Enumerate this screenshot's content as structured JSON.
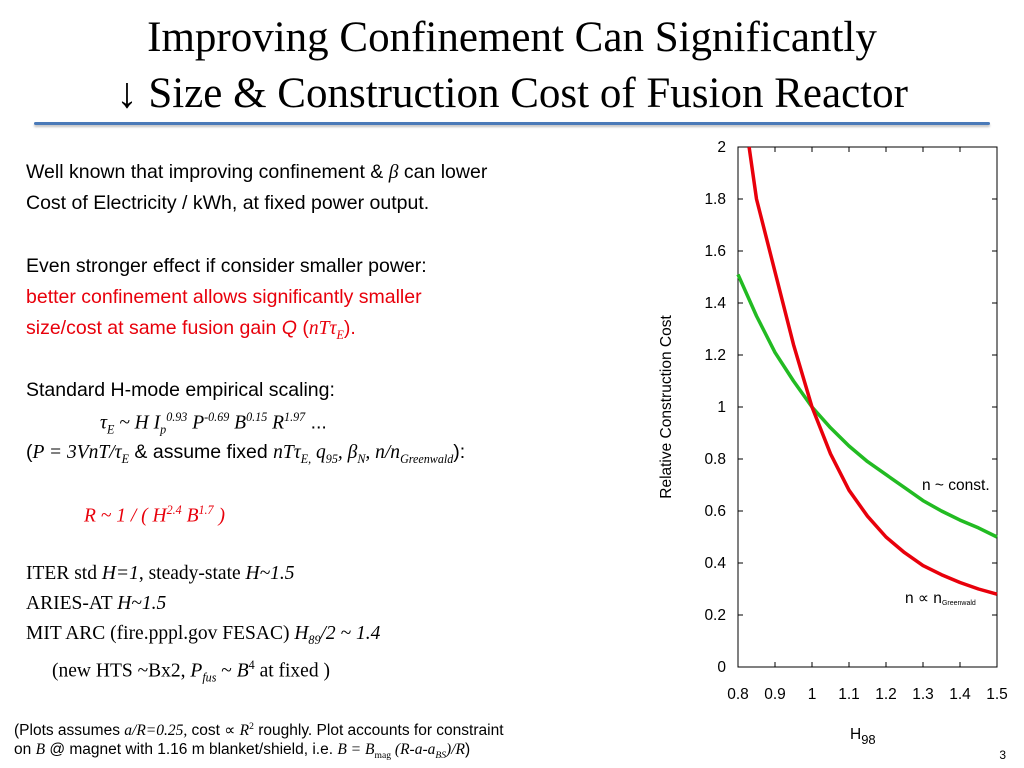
{
  "title": {
    "line1": "Improving Confinement Can Significantly",
    "line2": "↓ Size & Construction Cost of Fusion Reactor"
  },
  "text": {
    "p1_a": "Well known that improving confinement & ",
    "p1_beta": "β",
    "p1_b": " can lower",
    "p1_c": "Cost of Electricity / kWh, at fixed power output.",
    "p2_a": "Even stronger effect if consider smaller power:",
    "p2_b": "better confinement allows significantly smaller",
    "p2_c": "size/cost at same fusion gain ",
    "p2_Q": "Q",
    "p2_d": " (",
    "p2_ntau": "nTτ",
    "p2_E": "E",
    "p2_e": ").",
    "p3_a": "Standard H-mode empirical scaling:",
    "p3_formula": {
      "tau": "τ",
      "tau_sub": "E",
      "mid": " ~ H I",
      "p_sub": "p",
      "p_exp": "0.93",
      "P": " P",
      "P_exp": "-0.69",
      "B": " B",
      "B_exp": "0.15",
      "R": " R",
      "R_exp": "1.97",
      "tail": " ..."
    },
    "p3_assume": {
      "open": "(",
      "eq": "P = 3VnT/τ",
      "eq_sub": "E",
      "mid": " & assume fixed ",
      "vars": "nTτ",
      "vars_sub": "E,",
      "q": " q",
      "q_sub": "95",
      "beta": ", β",
      "beta_sub": "N",
      "nn": ", n/n",
      "nn_sub": "Greenwald",
      "close": "):"
    },
    "p3_R": {
      "a": "R ~ 1 / ( H",
      "h_exp": "2.4",
      "b": " B",
      "b_exp": "1.7",
      "c": " )"
    },
    "p4_a1": "ITER std ",
    "p4_a2": "H=1",
    "p4_a3": ", steady-state ",
    "p4_a4": "H~1.5",
    "p4_b1": "ARIES-AT  ",
    "p4_b2": "H~1.5",
    "p4_c1": "MIT ARC (fire.pppl.gov FESAC) ",
    "p4_c2": "H",
    "p4_c2sub": "89",
    "p4_c3": "/2 ~ 1.4",
    "p4_d1": "(new HTS ~Bx2, ",
    "p4_d2": "P",
    "p4_d2sub": "fus",
    "p4_d3": " ~ ",
    "p4_d4": "B",
    "p4_d4sup": "4",
    "p4_d5": " at fixed )"
  },
  "footnote": {
    "l1_a": "(Plots assumes ",
    "l1_b": "a/R=0.25,",
    "l1_c": " cost ∝ ",
    "l1_d": "R",
    "l1_dsup": "2",
    "l1_e": " roughly.  Plot accounts for constraint",
    "l2_a": "on ",
    "l2_b": "B",
    "l2_c": " @ magnet with 1.16 m blanket/shield, i.e. ",
    "l2_d": "B = B",
    "l2_dsub": "mag",
    "l2_e": " (R-a-a",
    "l2_esub": "BS",
    "l2_f": ")/R",
    "l2_g": ")"
  },
  "page_number": "3",
  "colors": {
    "red": "#e8000b",
    "green": "#22bb22",
    "rule": "#4a7ab8"
  },
  "chart_data": {
    "type": "line",
    "xlabel": "H",
    "xlabel_sub": "98",
    "ylabel": "Relative Construction Cost",
    "xlim": [
      0.8,
      1.5
    ],
    "ylim": [
      0,
      2
    ],
    "xticks": [
      0.8,
      0.9,
      1,
      1.1,
      1.2,
      1.3,
      1.4,
      1.5
    ],
    "xtick_labels": [
      "0.8",
      "0.9",
      "1",
      "1.1",
      "1.2",
      "1.3",
      "1.4",
      "1.5"
    ],
    "yticks": [
      0,
      0.2,
      0.4,
      0.6,
      0.8,
      1,
      1.2,
      1.4,
      1.6,
      1.8,
      2
    ],
    "ytick_labels": [
      "0",
      "0.2",
      "0.4",
      "0.6",
      "0.8",
      "1",
      "1.2",
      "1.4",
      "1.6",
      "1.8",
      "2"
    ],
    "series": [
      {
        "name": "n ~ const.",
        "color": "#22bb22",
        "x": [
          0.8,
          0.85,
          0.9,
          0.95,
          1.0,
          1.05,
          1.1,
          1.15,
          1.2,
          1.25,
          1.3,
          1.35,
          1.4,
          1.45,
          1.5
        ],
        "y": [
          1.51,
          1.35,
          1.21,
          1.1,
          1.0,
          0.92,
          0.85,
          0.79,
          0.74,
          0.69,
          0.64,
          0.6,
          0.565,
          0.535,
          0.5
        ]
      },
      {
        "name": "n ∝ n",
        "name_sub": "Greenwald",
        "color": "#e8000b",
        "x": [
          0.83,
          0.85,
          0.9,
          0.95,
          1.0,
          1.05,
          1.1,
          1.15,
          1.2,
          1.25,
          1.3,
          1.35,
          1.4,
          1.45,
          1.5
        ],
        "y": [
          2.0,
          1.8,
          1.52,
          1.24,
          1.0,
          0.82,
          0.68,
          0.58,
          0.5,
          0.44,
          0.39,
          0.355,
          0.325,
          0.3,
          0.28
        ]
      }
    ]
  }
}
